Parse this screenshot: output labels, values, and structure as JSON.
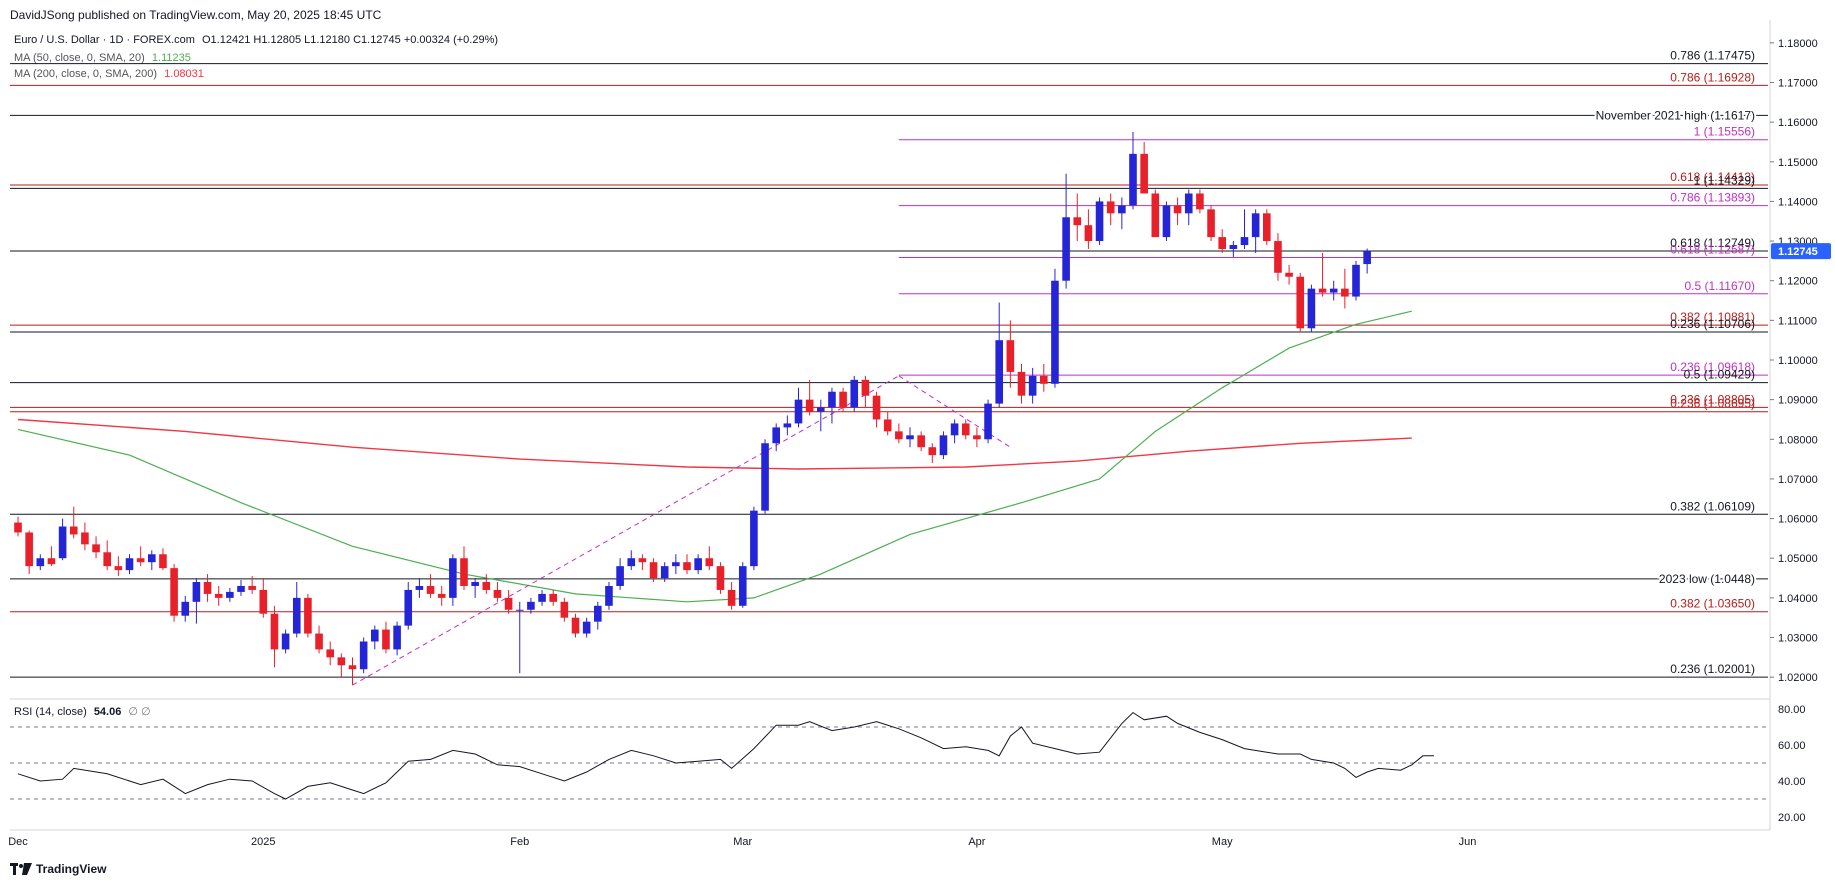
{
  "header": {
    "published": "DavidJSong published on TradingView.com, May 20, 2025 18:45 UTC"
  },
  "legend": {
    "symbol": "Euro / U.S. Dollar · 1D · FOREX.com",
    "ohlc": "O1.12421 H1.12805 L1.12180 C1.12745 +0.00324 (+0.29%)",
    "ma50_label": "MA (50, close, 0, SMA, 20)",
    "ma50_value": "1.11235",
    "ma200_label": "MA (200, close, 0, SMA, 200)",
    "ma200_value": "1.08031",
    "rsi_label": "RSI (14, close)",
    "rsi_value": "54.06",
    "rsi_extra": "∅ ∅"
  },
  "footer": {
    "brand": "TradingView",
    "logo_icon": "tradingview-logo-icon"
  },
  "colors": {
    "up": "#2525d8",
    "down": "#e8202a",
    "ma50": "#4caf50",
    "ma200": "#f23645",
    "black_level": "#131722",
    "red_level": "#b71c1c",
    "purple_level": "#c030c0",
    "rsi": "#131722",
    "price_badge": "#2962ff"
  },
  "chart_data": {
    "type": "candlestick",
    "symbol": "EUR/USD",
    "price_axis": {
      "ylim": [
        1.0155,
        1.1845
      ],
      "ticks": [
        "1.18000",
        "1.17000",
        "1.16000",
        "1.15000",
        "1.14000",
        "1.13000",
        "1.12000",
        "1.11000",
        "1.10000",
        "1.09000",
        "1.08000",
        "1.07000",
        "1.06000",
        "1.05000",
        "1.04000",
        "1.03000",
        "1.02000"
      ],
      "last_price": "1.12745"
    },
    "x_axis": {
      "labels": [
        {
          "label": "Dec",
          "i": 0
        },
        {
          "label": "2025",
          "i": 22
        },
        {
          "label": "Feb",
          "i": 45
        },
        {
          "label": "Mar",
          "i": 65
        },
        {
          "label": "Apr",
          "i": 86
        },
        {
          "label": "May",
          "i": 108
        },
        {
          "label": "Jun",
          "i": 130
        }
      ],
      "total_slots": 152
    },
    "candles": [
      [
        1.059,
        1.0605,
        1.0555,
        1.0565
      ],
      [
        1.0565,
        1.057,
        1.046,
        1.048
      ],
      [
        1.048,
        1.051,
        1.047,
        1.05
      ],
      [
        1.05,
        1.053,
        1.048,
        1.0485
      ],
      [
        1.05,
        1.06,
        1.0495,
        1.058
      ],
      [
        1.058,
        1.063,
        1.055,
        1.056
      ],
      [
        1.0565,
        1.059,
        1.052,
        1.0535
      ],
      [
        1.0535,
        1.0555,
        1.05,
        1.0515
      ],
      [
        1.0515,
        1.0545,
        1.047,
        1.048
      ],
      [
        1.048,
        1.0505,
        1.0455,
        1.047
      ],
      [
        1.047,
        1.051,
        1.046,
        1.05
      ],
      [
        1.05,
        1.053,
        1.048,
        1.049
      ],
      [
        1.049,
        1.052,
        1.047,
        1.051
      ],
      [
        1.051,
        1.0525,
        1.047,
        1.0475
      ],
      [
        1.0475,
        1.0485,
        1.034,
        1.0355
      ],
      [
        1.0355,
        1.0405,
        1.034,
        1.039
      ],
      [
        1.039,
        1.045,
        1.0335,
        1.044
      ],
      [
        1.044,
        1.046,
        1.039,
        1.041
      ],
      [
        1.041,
        1.043,
        1.038,
        1.04
      ],
      [
        1.04,
        1.0425,
        1.039,
        1.0415
      ],
      [
        1.0415,
        1.0445,
        1.0405,
        1.043
      ],
      [
        1.043,
        1.0455,
        1.041,
        1.042
      ],
      [
        1.042,
        1.045,
        1.035,
        1.036
      ],
      [
        1.036,
        1.038,
        1.0225,
        1.027
      ],
      [
        1.027,
        1.032,
        1.026,
        1.031
      ],
      [
        1.031,
        1.044,
        1.03,
        1.04
      ],
      [
        1.04,
        1.041,
        1.03,
        1.031
      ],
      [
        1.031,
        1.033,
        1.026,
        1.027
      ],
      [
        1.027,
        1.029,
        1.023,
        1.025
      ],
      [
        1.025,
        1.026,
        1.02,
        1.023
      ],
      [
        1.023,
        1.025,
        1.018,
        1.022
      ],
      [
        1.022,
        1.03,
        1.021,
        1.029
      ],
      [
        1.029,
        1.033,
        1.027,
        1.032
      ],
      [
        1.032,
        1.034,
        1.026,
        1.027
      ],
      [
        1.027,
        1.034,
        1.0255,
        1.033
      ],
      [
        1.033,
        1.044,
        1.032,
        1.042
      ],
      [
        1.042,
        1.045,
        1.04,
        1.043
      ],
      [
        1.043,
        1.046,
        1.04,
        1.041
      ],
      [
        1.041,
        1.043,
        1.038,
        1.04
      ],
      [
        1.04,
        1.051,
        1.038,
        1.05
      ],
      [
        1.05,
        1.053,
        1.042,
        1.043
      ],
      [
        1.043,
        1.045,
        1.04,
        1.044
      ],
      [
        1.044,
        1.046,
        1.041,
        1.042
      ],
      [
        1.042,
        1.044,
        1.039,
        1.04
      ],
      [
        1.04,
        1.042,
        1.036,
        1.037
      ],
      [
        1.037,
        1.039,
        1.021,
        1.037
      ],
      [
        1.037,
        1.04,
        1.036,
        1.039
      ],
      [
        1.039,
        1.042,
        1.038,
        1.041
      ],
      [
        1.041,
        1.042,
        1.038,
        1.039
      ],
      [
        1.039,
        1.04,
        1.034,
        1.035
      ],
      [
        1.035,
        1.036,
        1.03,
        1.031
      ],
      [
        1.031,
        1.035,
        1.03,
        1.034
      ],
      [
        1.034,
        1.039,
        1.032,
        1.038
      ],
      [
        1.038,
        1.044,
        1.037,
        1.043
      ],
      [
        1.043,
        1.05,
        1.042,
        1.048
      ],
      [
        1.048,
        1.052,
        1.047,
        1.05
      ],
      [
        1.05,
        1.051,
        1.047,
        1.049
      ],
      [
        1.049,
        1.05,
        1.044,
        1.045
      ],
      [
        1.045,
        1.049,
        1.044,
        1.048
      ],
      [
        1.048,
        1.051,
        1.046,
        1.049
      ],
      [
        1.049,
        1.051,
        1.046,
        1.047
      ],
      [
        1.047,
        1.051,
        1.046,
        1.05
      ],
      [
        1.05,
        1.053,
        1.047,
        1.048
      ],
      [
        1.048,
        1.049,
        1.041,
        1.042
      ],
      [
        1.042,
        1.044,
        1.037,
        1.038
      ],
      [
        1.038,
        1.049,
        1.0375,
        1.048
      ],
      [
        1.048,
        1.063,
        1.047,
        1.062
      ],
      [
        1.062,
        1.08,
        1.061,
        1.079
      ],
      [
        1.079,
        1.084,
        1.077,
        1.083
      ],
      [
        1.083,
        1.086,
        1.081,
        1.084
      ],
      [
        1.084,
        1.093,
        1.083,
        1.09
      ],
      [
        1.09,
        1.095,
        1.086,
        1.087
      ],
      [
        1.087,
        1.09,
        1.082,
        1.088
      ],
      [
        1.088,
        1.093,
        1.084,
        1.092
      ],
      [
        1.092,
        1.093,
        1.087,
        1.088
      ],
      [
        1.088,
        1.096,
        1.087,
        1.095
      ],
      [
        1.095,
        1.096,
        1.088,
        1.091
      ],
      [
        1.091,
        1.092,
        1.083,
        1.085
      ],
      [
        1.085,
        1.087,
        1.081,
        1.082
      ],
      [
        1.082,
        1.084,
        1.079,
        1.08
      ],
      [
        1.08,
        1.083,
        1.078,
        1.081
      ],
      [
        1.081,
        1.082,
        1.077,
        1.078
      ],
      [
        1.078,
        1.079,
        1.074,
        1.076
      ],
      [
        1.076,
        1.082,
        1.075,
        1.081
      ],
      [
        1.081,
        1.085,
        1.079,
        1.084
      ],
      [
        1.084,
        1.085,
        1.08,
        1.081
      ],
      [
        1.081,
        1.083,
        1.078,
        1.08
      ],
      [
        1.08,
        1.09,
        1.079,
        1.089
      ],
      [
        1.089,
        1.1145,
        1.088,
        1.105
      ],
      [
        1.105,
        1.11,
        1.093,
        1.097
      ],
      [
        1.097,
        1.099,
        1.089,
        1.091
      ],
      [
        1.091,
        1.098,
        1.089,
        1.096
      ],
      [
        1.096,
        1.099,
        1.092,
        1.094
      ],
      [
        1.094,
        1.123,
        1.093,
        1.12
      ],
      [
        1.12,
        1.147,
        1.118,
        1.136
      ],
      [
        1.136,
        1.142,
        1.13,
        1.134
      ],
      [
        1.134,
        1.138,
        1.128,
        1.13
      ],
      [
        1.13,
        1.141,
        1.129,
        1.14
      ],
      [
        1.14,
        1.142,
        1.134,
        1.137
      ],
      [
        1.137,
        1.141,
        1.133,
        1.139
      ],
      [
        1.139,
        1.1575,
        1.138,
        1.152
      ],
      [
        1.152,
        1.155,
        1.142,
        1.142
      ],
      [
        1.142,
        1.143,
        1.131,
        1.131
      ],
      [
        1.131,
        1.14,
        1.13,
        1.139
      ],
      [
        1.139,
        1.141,
        1.134,
        1.137
      ],
      [
        1.137,
        1.143,
        1.134,
        1.142
      ],
      [
        1.142,
        1.143,
        1.137,
        1.138
      ],
      [
        1.138,
        1.139,
        1.13,
        1.131
      ],
      [
        1.131,
        1.133,
        1.127,
        1.128
      ],
      [
        1.128,
        1.13,
        1.126,
        1.129
      ],
      [
        1.129,
        1.138,
        1.128,
        1.131
      ],
      [
        1.131,
        1.138,
        1.127,
        1.137
      ],
      [
        1.137,
        1.138,
        1.129,
        1.13
      ],
      [
        1.13,
        1.132,
        1.12,
        1.122
      ],
      [
        1.122,
        1.124,
        1.119,
        1.121
      ],
      [
        1.121,
        1.122,
        1.107,
        1.108
      ],
      [
        1.108,
        1.119,
        1.107,
        1.118
      ],
      [
        1.118,
        1.127,
        1.116,
        1.117
      ],
      [
        1.117,
        1.12,
        1.115,
        1.118
      ],
      [
        1.118,
        1.123,
        1.113,
        1.116
      ],
      [
        1.116,
        1.125,
        1.115,
        1.124
      ],
      [
        1.1242,
        1.1281,
        1.1218,
        1.1275
      ]
    ],
    "ma50": [
      [
        0,
        1.0825
      ],
      [
        10,
        1.076
      ],
      [
        20,
        1.064
      ],
      [
        30,
        1.053
      ],
      [
        40,
        1.046
      ],
      [
        50,
        1.041
      ],
      [
        60,
        1.039
      ],
      [
        66,
        1.04
      ],
      [
        72,
        1.046
      ],
      [
        80,
        1.056
      ],
      [
        90,
        1.064
      ],
      [
        97,
        1.07
      ],
      [
        102,
        1.082
      ],
      [
        108,
        1.093
      ],
      [
        114,
        1.103
      ],
      [
        120,
        1.109
      ],
      [
        125,
        1.1123
      ]
    ],
    "ma200": [
      [
        0,
        1.085
      ],
      [
        15,
        1.082
      ],
      [
        30,
        1.078
      ],
      [
        45,
        1.075
      ],
      [
        60,
        1.073
      ],
      [
        70,
        1.0725
      ],
      [
        85,
        1.073
      ],
      [
        95,
        1.0745
      ],
      [
        105,
        1.077
      ],
      [
        115,
        1.079
      ],
      [
        125,
        1.0803
      ]
    ],
    "dashed_trend": [
      [
        [
          30,
          1.018
        ],
        [
          79,
          1.096
        ]
      ],
      [
        [
          79,
          1.096
        ],
        [
          89,
          1.078
        ]
      ]
    ],
    "levels": [
      {
        "price": 1.17475,
        "label": "0.786 (1.17475)",
        "color": "black",
        "from": 0
      },
      {
        "price": 1.16928,
        "label": "0.786 (1.16928)",
        "color": "red",
        "from": 0
      },
      {
        "price": 1.1617,
        "label": "November 2021 high (1.1617)",
        "color": "black",
        "from": 0
      },
      {
        "price": 1.15556,
        "label": "1 (1.15556)",
        "color": "purple",
        "from": 79
      },
      {
        "price": 1.14413,
        "label": "0.618 (1.14413)",
        "color": "red",
        "from": 0
      },
      {
        "price": 1.14329,
        "label": "1 (1.14329)",
        "color": "black",
        "from": 0
      },
      {
        "price": 1.13893,
        "label": "0.786 (1.13893)",
        "color": "purple",
        "from": 79
      },
      {
        "price": 1.12749,
        "label": "0.618 (1.12749)",
        "color": "black",
        "from": 0
      },
      {
        "price": 1.12587,
        "label": "0.618 (1.12587)",
        "color": "purple",
        "from": 79
      },
      {
        "price": 1.1167,
        "label": "0.5 (1.11670)",
        "color": "purple",
        "from": 79
      },
      {
        "price": 1.10881,
        "label": "0.382 (1.10881)",
        "color": "red",
        "from": 0
      },
      {
        "price": 1.10706,
        "label": "0.236 (1.10706)",
        "color": "black",
        "from": 0
      },
      {
        "price": 1.09618,
        "label": "0.236 (1.09618)",
        "color": "purple",
        "from": 79
      },
      {
        "price": 1.09429,
        "label": "0.5 (1.09429)",
        "color": "black",
        "from": 0
      },
      {
        "price": 1.08805,
        "label": "0.236 (1.08805)",
        "color": "red",
        "from": 0
      },
      {
        "price": 1.08695,
        "label": "0.236 (1.08695)",
        "color": "red",
        "from": 0
      },
      {
        "price": 1.06109,
        "label": "0.382 (1.06109)",
        "color": "black",
        "from": 0
      },
      {
        "price": 1.0448,
        "label": "2023 low (1.0448)",
        "color": "black",
        "from": 0
      },
      {
        "price": 1.0365,
        "label": "0.382 (1.03650)",
        "color": "red",
        "from": 0
      },
      {
        "price": 1.02001,
        "label": "0.236 (1.02001)",
        "color": "black",
        "from": 0
      }
    ],
    "rsi": {
      "ylim": [
        15,
        85
      ],
      "ticks": [
        "80.00",
        "60.00",
        "40.00",
        "20.00"
      ],
      "bands": [
        70,
        50,
        30
      ],
      "values": [
        [
          0,
          44
        ],
        [
          2,
          40
        ],
        [
          4,
          41
        ],
        [
          5,
          47
        ],
        [
          8,
          44
        ],
        [
          11,
          38
        ],
        [
          13,
          41
        ],
        [
          15,
          33
        ],
        [
          17,
          38
        ],
        [
          19,
          41
        ],
        [
          21,
          40
        ],
        [
          23,
          33
        ],
        [
          24,
          30
        ],
        [
          26,
          37
        ],
        [
          28,
          39
        ],
        [
          30,
          35
        ],
        [
          31,
          33
        ],
        [
          33,
          39
        ],
        [
          35,
          51
        ],
        [
          37,
          52
        ],
        [
          39,
          57
        ],
        [
          41,
          55
        ],
        [
          43,
          49
        ],
        [
          45,
          48
        ],
        [
          47,
          44
        ],
        [
          49,
          40
        ],
        [
          51,
          45
        ],
        [
          53,
          52
        ],
        [
          55,
          57
        ],
        [
          57,
          54
        ],
        [
          59,
          50
        ],
        [
          61,
          51
        ],
        [
          63,
          52
        ],
        [
          64,
          47
        ],
        [
          66,
          58
        ],
        [
          68,
          71
        ],
        [
          70,
          71
        ],
        [
          71,
          73
        ],
        [
          73,
          68
        ],
        [
          75,
          70
        ],
        [
          77,
          73
        ],
        [
          79,
          69
        ],
        [
          81,
          64
        ],
        [
          83,
          58
        ],
        [
          85,
          59
        ],
        [
          87,
          57
        ],
        [
          88,
          54
        ],
        [
          89,
          65
        ],
        [
          90,
          70
        ],
        [
          91,
          61
        ],
        [
          93,
          58
        ],
        [
          95,
          55
        ],
        [
          97,
          56
        ],
        [
          99,
          72
        ],
        [
          100,
          78
        ],
        [
          101,
          74
        ],
        [
          103,
          76
        ],
        [
          104,
          72
        ],
        [
          106,
          67
        ],
        [
          108,
          63
        ],
        [
          110,
          58
        ],
        [
          112,
          56
        ],
        [
          113,
          55
        ],
        [
          115,
          55
        ],
        [
          116,
          52
        ],
        [
          118,
          50
        ],
        [
          119,
          47
        ],
        [
          120,
          42
        ],
        [
          121,
          45
        ],
        [
          122,
          47
        ],
        [
          124,
          46
        ],
        [
          125,
          49
        ],
        [
          126,
          54
        ],
        [
          127,
          54.06
        ]
      ]
    }
  }
}
